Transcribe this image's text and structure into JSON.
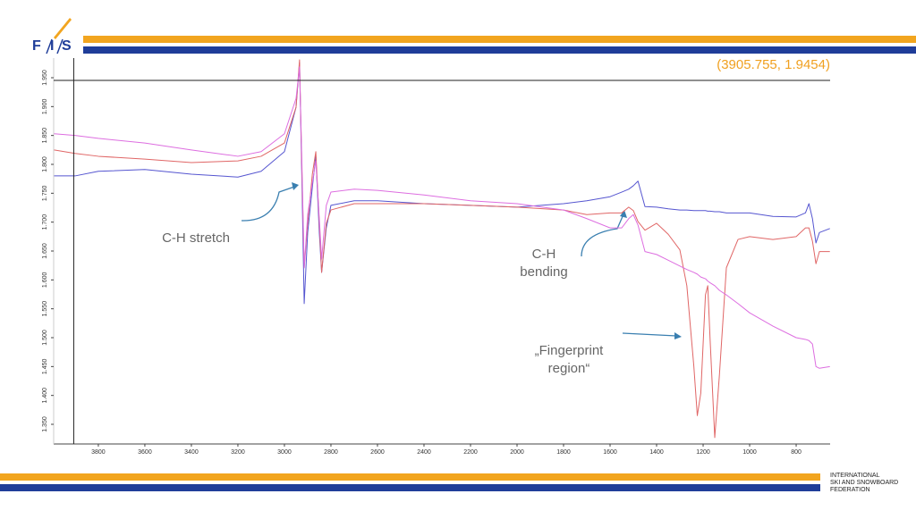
{
  "logo": [
    "F",
    "I",
    "S"
  ],
  "footer": [
    "INTERNATIONAL",
    "SKI AND SNOWBOARD",
    "FEDERATION"
  ],
  "chart_data": {
    "type": "line",
    "x": [
      3990,
      3900,
      3800,
      3600,
      3400,
      3200,
      3100,
      3000,
      2950,
      2935,
      2925,
      2915,
      2900,
      2880,
      2865,
      2850,
      2840,
      2820,
      2800,
      2700,
      2600,
      2400,
      2200,
      2000,
      1800,
      1700,
      1600,
      1550,
      1520,
      1500,
      1480,
      1450,
      1400,
      1350,
      1300,
      1270,
      1240,
      1225,
      1210,
      1190,
      1180,
      1170,
      1150,
      1130,
      1100,
      1050,
      1000,
      900,
      800,
      760,
      745,
      730,
      715,
      700,
      655
    ],
    "series": [
      {
        "color": "#5555d0",
        "values": [
          1.78,
          1.78,
          1.788,
          1.791,
          1.783,
          1.778,
          1.788,
          1.822,
          1.899,
          1.976,
          1.775,
          1.559,
          1.682,
          1.76,
          1.814,
          1.682,
          1.613,
          1.69,
          1.729,
          1.737,
          1.737,
          1.732,
          1.729,
          1.726,
          1.732,
          1.737,
          1.744,
          1.752,
          1.757,
          1.763,
          1.771,
          1.727,
          1.726,
          1.723,
          1.721,
          1.721,
          1.72,
          1.72,
          1.72,
          1.72,
          1.719,
          1.719,
          1.718,
          1.718,
          1.716,
          1.716,
          1.716,
          1.71,
          1.709,
          1.716,
          1.732,
          1.706,
          1.664,
          1.682,
          1.689
        ]
      },
      {
        "color": "#e06666",
        "values": [
          1.825,
          1.819,
          1.814,
          1.809,
          1.803,
          1.806,
          1.814,
          1.837,
          1.899,
          1.981,
          1.791,
          1.621,
          1.698,
          1.783,
          1.822,
          1.698,
          1.613,
          1.698,
          1.721,
          1.732,
          1.732,
          1.732,
          1.729,
          1.726,
          1.721,
          1.713,
          1.716,
          1.716,
          1.726,
          1.72,
          1.701,
          1.686,
          1.698,
          1.679,
          1.652,
          1.59,
          1.451,
          1.365,
          1.404,
          1.574,
          1.59,
          1.497,
          1.327,
          1.435,
          1.621,
          1.67,
          1.675,
          1.67,
          1.675,
          1.69,
          1.69,
          1.667,
          1.628,
          1.649,
          1.649
        ]
      },
      {
        "color": "#dd6ee0",
        "values": [
          1.853,
          1.85,
          1.845,
          1.837,
          1.825,
          1.814,
          1.822,
          1.853,
          1.914,
          1.969,
          1.806,
          1.621,
          1.713,
          1.768,
          1.806,
          1.706,
          1.636,
          1.729,
          1.752,
          1.757,
          1.755,
          1.747,
          1.737,
          1.732,
          1.721,
          1.706,
          1.69,
          1.69,
          1.706,
          1.713,
          1.695,
          1.649,
          1.644,
          1.634,
          1.624,
          1.618,
          1.613,
          1.61,
          1.605,
          1.602,
          1.598,
          1.595,
          1.59,
          1.582,
          1.574,
          1.559,
          1.543,
          1.52,
          1.5,
          1.497,
          1.495,
          1.489,
          1.45,
          1.447,
          1.45
        ]
      }
    ],
    "xlim": [
      3992,
      654
    ],
    "xticks": [
      3800,
      3600,
      3400,
      3200,
      3000,
      2800,
      2600,
      2400,
      2200,
      2000,
      1800,
      1600,
      1400,
      1200,
      1000,
      800
    ],
    "ylim": [
      1.316,
      1.984
    ],
    "yticks": [
      {
        "value": 1.35,
        "label": "1.350"
      },
      {
        "value": 1.4,
        "label": "1.400"
      },
      {
        "value": 1.45,
        "label": "1.450"
      },
      {
        "value": 1.5,
        "label": "1.500"
      },
      {
        "value": 1.55,
        "label": "1.550"
      },
      {
        "value": 1.6,
        "label": "1.600"
      },
      {
        "value": 1.65,
        "label": "1.650"
      },
      {
        "value": 1.7,
        "label": "1.700"
      },
      {
        "value": 1.75,
        "label": "1.750"
      },
      {
        "value": 1.8,
        "label": "1.800"
      },
      {
        "value": 1.85,
        "label": "1.850"
      },
      {
        "value": 1.9,
        "label": "1.900"
      },
      {
        "value": 1.95,
        "label": "1.950"
      }
    ],
    "cursor": {
      "x": 3905.755,
      "y": 1.9454,
      "label": "(3905.755, 1.9454)",
      "color": "#f0a020"
    },
    "annotations": [
      {
        "lines": [
          "C-H stretch"
        ]
      },
      {
        "lines": [
          "C-H",
          "bending"
        ]
      },
      {
        "lines": [
          "„Fingerprint",
          "region“"
        ]
      }
    ]
  }
}
